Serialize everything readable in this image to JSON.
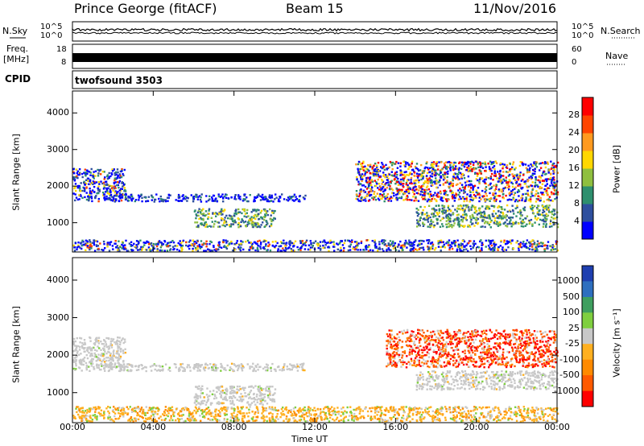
{
  "header": {
    "station": "Prince George (fitACF)",
    "beam": "Beam 15",
    "date": "11/Nov/2016"
  },
  "status_panels": {
    "nsky_label": "N.Sky",
    "nsearch_label": "N.Search",
    "freq_label": "Freq.",
    "freq_unit": "[MHz]",
    "nave_label": "Nave",
    "cpid_label": "CPID",
    "cpid_value": "twofsound 3503",
    "noise_ticks": [
      "10^5",
      "10^0"
    ],
    "freq_ticks_left": [
      "18",
      "8"
    ],
    "nave_ticks_right": [
      "60",
      "0"
    ]
  },
  "chart_data": [
    {
      "type": "heatmap",
      "name": "power",
      "ylabel": "Slant Range [km]",
      "xlabel": "",
      "ylim": [
        200,
        4600
      ],
      "yticks": [
        "1000",
        "2000",
        "3000",
        "4000"
      ],
      "colorbar_label": "Power [dB]",
      "colorbar_ticks": [
        "4",
        "8",
        "12",
        "16",
        "20",
        "24",
        "28"
      ],
      "colorbar_colors": [
        "#0000ff",
        "#2e4f9e",
        "#2e8f6e",
        "#8fbf3f",
        "#ffd700",
        "#ff9a1f",
        "#ff4500",
        "#ff0000"
      ],
      "echo_regions": [
        {
          "t": [
            0.0,
            2.6
          ],
          "r": [
            1600,
            2500
          ],
          "level": "mixed"
        },
        {
          "t": [
            1.5,
            11.5
          ],
          "r": [
            1600,
            1800
          ],
          "level": "low"
        },
        {
          "t": [
            6.0,
            10.0
          ],
          "r": [
            900,
            1400
          ],
          "level": "mid"
        },
        {
          "t": [
            0.0,
            24.0
          ],
          "r": [
            250,
            550
          ],
          "level": "mixed"
        },
        {
          "t": [
            14.0,
            24.0
          ],
          "r": [
            1600,
            2700
          ],
          "level": "high"
        },
        {
          "t": [
            17.0,
            24.0
          ],
          "r": [
            900,
            1500
          ],
          "level": "mid"
        }
      ]
    },
    {
      "type": "heatmap",
      "name": "velocity",
      "ylabel": "Slant Range [km]",
      "xlabel": "Time UT",
      "ylim": [
        200,
        4600
      ],
      "yticks": [
        "1000",
        "2000",
        "3000",
        "4000"
      ],
      "xticks": [
        "00:00",
        "04:00",
        "08:00",
        "12:00",
        "16:00",
        "20:00",
        "00:00"
      ],
      "colorbar_label": "Velocity [m s⁻¹]",
      "colorbar_ticks": [
        "1000",
        "500",
        "100",
        "25",
        "-25",
        "-100",
        "-500",
        "-1000"
      ],
      "colorbar_colors": [
        "#1e3fb0",
        "#2e6fbf",
        "#3f9f5f",
        "#7fcf3f",
        "#c8c8c8",
        "#ffb020",
        "#ff8a00",
        "#ff5a00",
        "#ff0000"
      ],
      "echo_regions": [
        {
          "t": [
            0.0,
            2.6
          ],
          "r": [
            1600,
            2500
          ],
          "level": "ground"
        },
        {
          "t": [
            1.5,
            11.5
          ],
          "r": [
            1600,
            1800
          ],
          "level": "ground"
        },
        {
          "t": [
            6.0,
            10.0
          ],
          "r": [
            700,
            1200
          ],
          "level": "ground"
        },
        {
          "t": [
            0.0,
            24.0
          ],
          "r": [
            250,
            650
          ],
          "level": "slow-positive"
        },
        {
          "t": [
            15.5,
            24.0
          ],
          "r": [
            1700,
            2700
          ],
          "level": "away"
        },
        {
          "t": [
            17.0,
            24.0
          ],
          "r": [
            1100,
            1600
          ],
          "level": "ground"
        }
      ]
    }
  ]
}
